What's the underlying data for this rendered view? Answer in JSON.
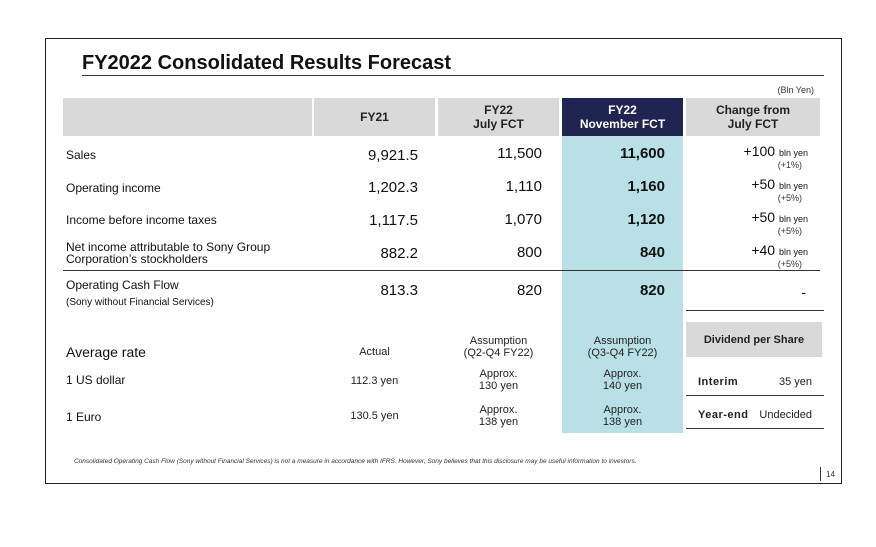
{
  "title": "FY2022 Consolidated Results Forecast",
  "unit": "(Bln Yen)",
  "headers": {
    "fy21": "FY21",
    "july": [
      "FY22",
      "July FCT"
    ],
    "nov": [
      "FY22",
      "November FCT"
    ],
    "change": [
      "Change from",
      "July FCT"
    ]
  },
  "rows": [
    {
      "label": "Sales",
      "fy21": "9,921.5",
      "july": "11,500",
      "nov": "11,600",
      "chg": "+100",
      "unit": "bln yen",
      "pct": "(+1%)"
    },
    {
      "label": "Operating income",
      "fy21": "1,202.3",
      "july": "1,110",
      "nov": "1,160",
      "chg": "+50",
      "unit": "bln yen",
      "pct": "(+5%)"
    },
    {
      "label": "Income before income taxes",
      "fy21": "1,117.5",
      "july": "1,070",
      "nov": "1,120",
      "chg": "+50",
      "unit": "bln yen",
      "pct": "(+5%)"
    },
    {
      "label": "Net income attributable to Sony Group",
      "label2": "Corporation’s stockholders",
      "fy21": "882.2",
      "july": "800",
      "nov": "840",
      "chg": "+40",
      "unit": "bln yen",
      "pct": "(+5%)"
    }
  ],
  "ocf": {
    "label": "Operating Cash Flow",
    "sub": "(Sony without Financial Services)",
    "fy21": "813.3",
    "july": "820",
    "nov": "820",
    "chg": "-"
  },
  "rates": {
    "title": "Average rate",
    "actual_hdr": "Actual",
    "july_hdr": [
      "Assumption",
      "(Q2-Q4 FY22)"
    ],
    "nov_hdr": [
      "Assumption",
      "(Q3-Q4 FY22)"
    ],
    "usd": {
      "label": "1 US dollar",
      "actual": "112.3 yen",
      "july": [
        "Approx.",
        "130 yen"
      ],
      "nov": [
        "Approx.",
        "140 yen"
      ]
    },
    "eur": {
      "label": "1 Euro",
      "actual": "130.5 yen",
      "july": [
        "Approx.",
        "138 yen"
      ],
      "nov": [
        "Approx.",
        "138 yen"
      ]
    }
  },
  "dividend": {
    "title": "Dividend per Share",
    "interim_label": "Interim",
    "interim_value": "35 yen",
    "yearend_label": "Year-end",
    "yearend_value": "Undecided"
  },
  "footnote": "Consolidated Operating Cash Flow (Sony without Financial Services) is not a measure in accordance with IFRS.  However, Sony believes that this disclosure may be useful information to investors.",
  "page": "14",
  "colors": {
    "header_gray": "#d9d9d9",
    "nov_dark": "#1f2451",
    "nov_highlight": "#b9e0e6"
  }
}
